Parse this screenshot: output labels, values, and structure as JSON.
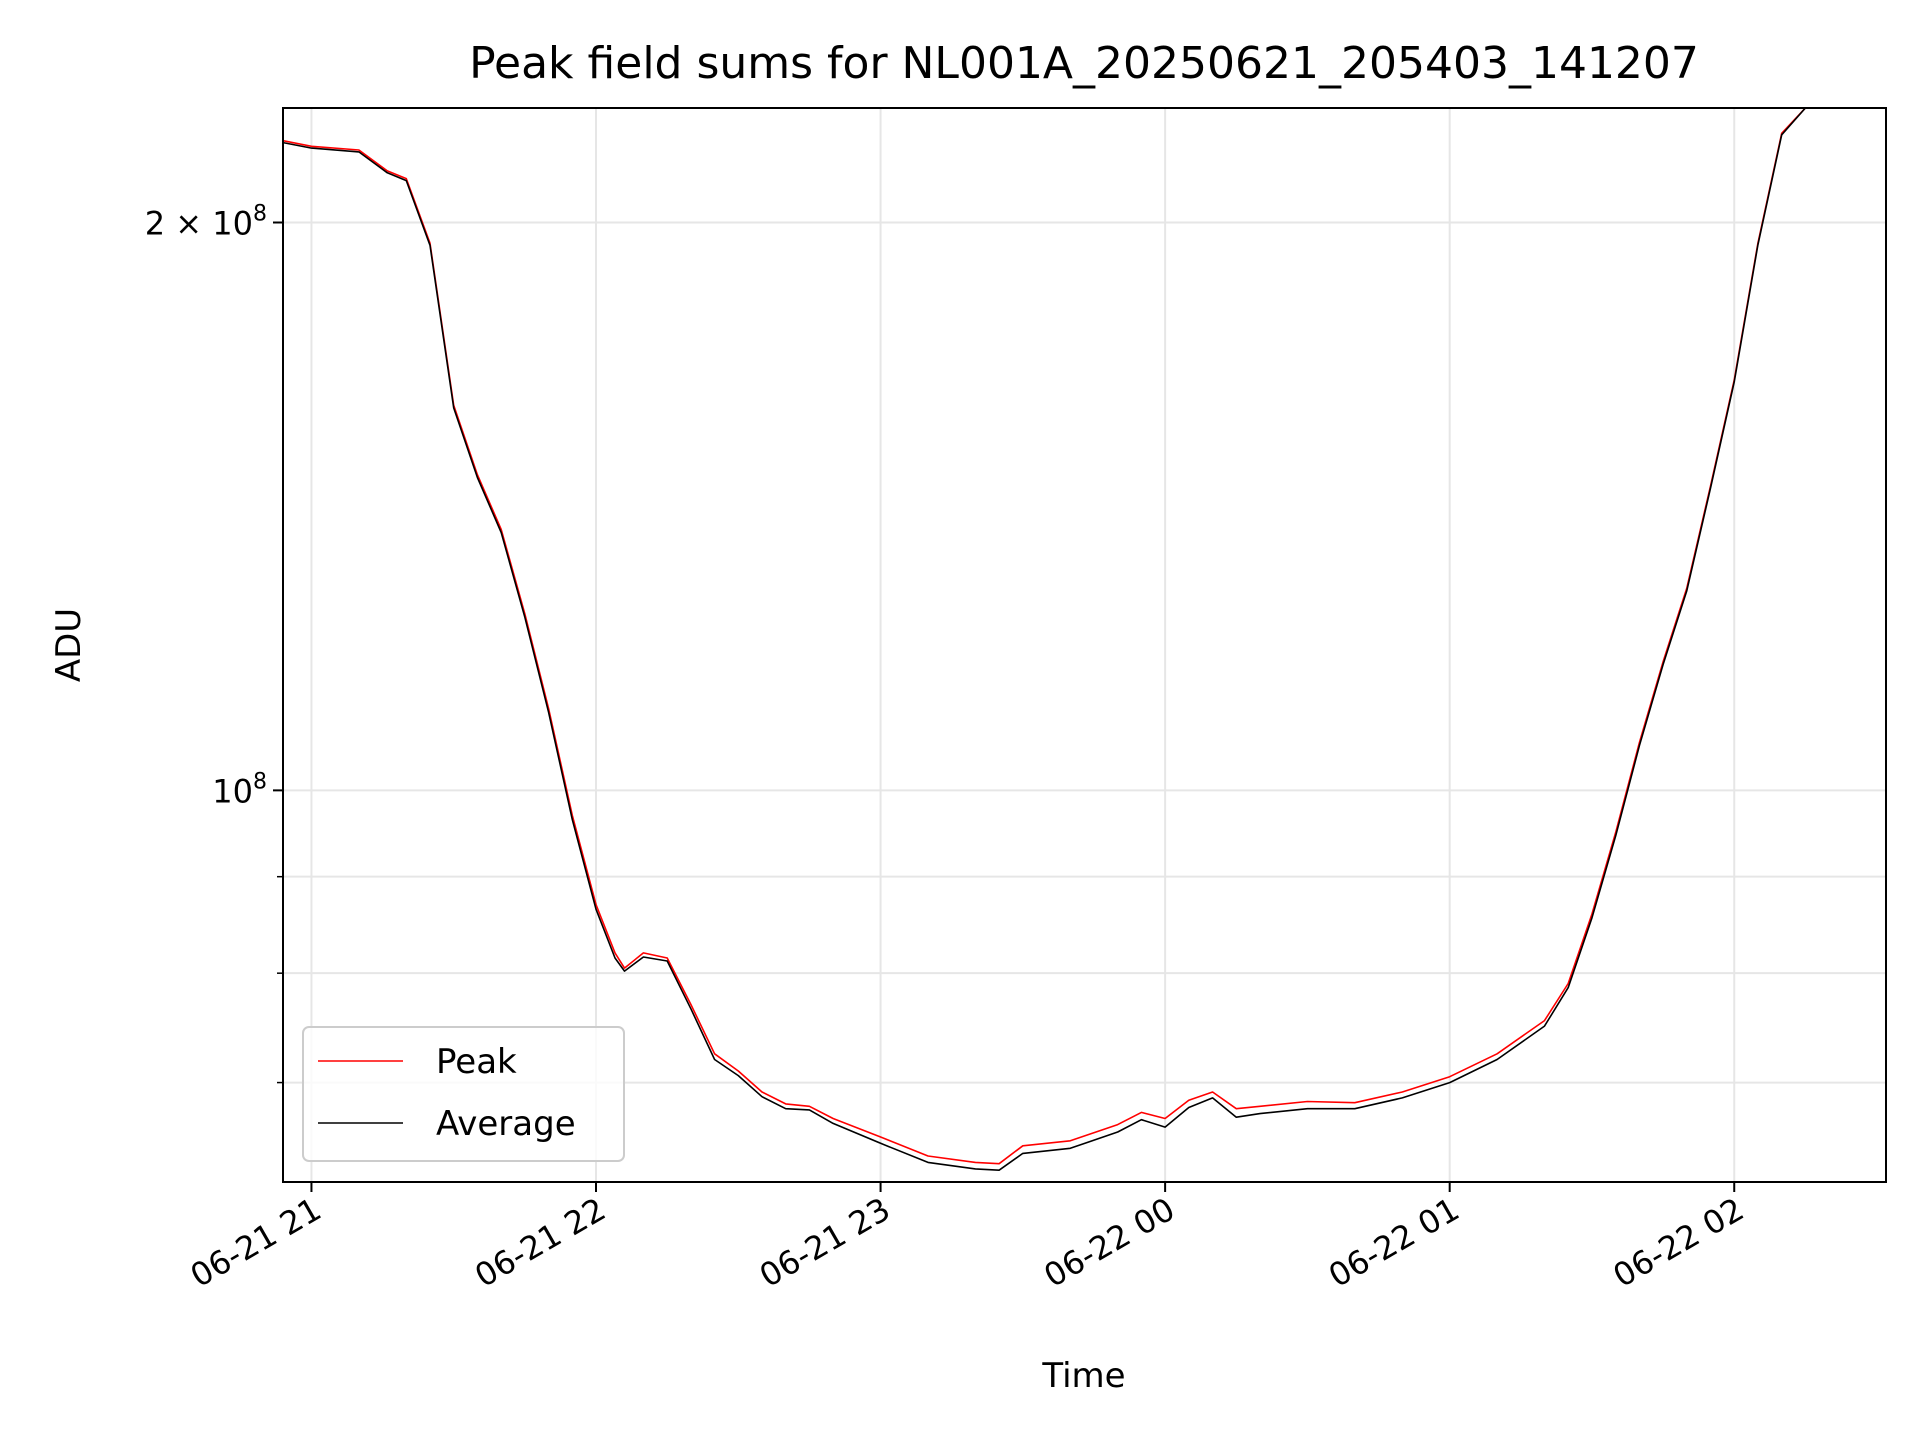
{
  "chart_data": {
    "type": "line",
    "title": "Peak field sums for NL001A_20250621_205403_141207",
    "xlabel": "Time",
    "ylabel": "ADU",
    "x_range": [
      "2025-06-21 20:54",
      "2025-06-22 02:32"
    ],
    "y_range": [
      62000000,
      230000000
    ],
    "y_scale": "log",
    "grid": true,
    "legend_placement": "lower-left",
    "x_ticks": [
      {
        "x": "2025-06-21 21:00",
        "label": "06-21 21"
      },
      {
        "x": "2025-06-21 22:00",
        "label": "06-21 22"
      },
      {
        "x": "2025-06-21 23:00",
        "label": "06-21 23"
      },
      {
        "x": "2025-06-22 00:00",
        "label": "06-22 00"
      },
      {
        "x": "2025-06-22 01:00",
        "label": "06-22 01"
      },
      {
        "x": "2025-06-22 02:00",
        "label": "06-22 02"
      }
    ],
    "y_ticks": [
      {
        "y": 100000000,
        "base": "10",
        "exp": "8"
      },
      {
        "y": 200000000,
        "base": "2 × 10",
        "exp": "8"
      }
    ],
    "y_minor_ticks": [
      70000000,
      80000000,
      90000000
    ],
    "series": [
      {
        "name": "Peak",
        "color": "#ff0000",
        "points": [
          [
            "2025-06-21 20:54",
            221000000
          ],
          [
            "2025-06-21 21:00",
            219500000
          ],
          [
            "2025-06-21 21:10",
            218500000
          ],
          [
            "2025-06-21 21:16",
            213000000
          ],
          [
            "2025-06-21 21:20",
            211000000
          ],
          [
            "2025-06-21 21:25",
            195000000
          ],
          [
            "2025-06-21 21:30",
            160000000
          ],
          [
            "2025-06-21 21:35",
            147000000
          ],
          [
            "2025-06-21 21:40",
            137500000
          ],
          [
            "2025-06-21 21:45",
            124000000
          ],
          [
            "2025-06-21 21:50",
            110500000
          ],
          [
            "2025-06-21 21:55",
            97000000
          ],
          [
            "2025-06-21 22:00",
            87000000
          ],
          [
            "2025-06-21 22:04",
            82000000
          ],
          [
            "2025-06-21 22:06",
            80500000
          ],
          [
            "2025-06-21 22:10",
            82000000
          ],
          [
            "2025-06-21 22:15",
            81500000
          ],
          [
            "2025-06-21 22:20",
            77000000
          ],
          [
            "2025-06-21 22:25",
            72500000
          ],
          [
            "2025-06-21 22:30",
            71000000
          ],
          [
            "2025-06-21 22:35",
            69200000
          ],
          [
            "2025-06-21 22:40",
            68200000
          ],
          [
            "2025-06-21 22:45",
            68000000
          ],
          [
            "2025-06-21 22:50",
            67000000
          ],
          [
            "2025-06-21 23:00",
            65500000
          ],
          [
            "2025-06-21 23:10",
            64000000
          ],
          [
            "2025-06-21 23:20",
            63500000
          ],
          [
            "2025-06-21 23:25",
            63400000
          ],
          [
            "2025-06-21 23:30",
            64800000
          ],
          [
            "2025-06-21 23:40",
            65200000
          ],
          [
            "2025-06-21 23:50",
            66500000
          ],
          [
            "2025-06-21 23:55",
            67500000
          ],
          [
            "2025-06-22 00:00",
            67000000
          ],
          [
            "2025-06-22 00:05",
            68500000
          ],
          [
            "2025-06-22 00:10",
            69200000
          ],
          [
            "2025-06-22 00:15",
            67800000
          ],
          [
            "2025-06-22 00:20",
            68000000
          ],
          [
            "2025-06-22 00:30",
            68400000
          ],
          [
            "2025-06-22 00:40",
            68300000
          ],
          [
            "2025-06-22 00:50",
            69200000
          ],
          [
            "2025-06-22 01:00",
            70500000
          ],
          [
            "2025-06-22 01:10",
            72500000
          ],
          [
            "2025-06-22 01:20",
            75500000
          ],
          [
            "2025-06-22 01:25",
            79000000
          ],
          [
            "2025-06-22 01:30",
            86000000
          ],
          [
            "2025-06-22 01:35",
            95000000
          ],
          [
            "2025-06-22 01:40",
            106000000
          ],
          [
            "2025-06-22 01:45",
            117000000
          ],
          [
            "2025-06-22 01:50",
            128000000
          ],
          [
            "2025-06-22 01:55",
            145000000
          ],
          [
            "2025-06-22 02:00",
            165000000
          ],
          [
            "2025-06-22 02:05",
            195000000
          ],
          [
            "2025-06-22 02:10",
            223000000
          ],
          [
            "2025-06-22 02:15",
            230000000
          ],
          [
            "2025-06-22 02:32",
            230000000
          ]
        ]
      },
      {
        "name": "Average",
        "color": "#000000",
        "points": [
          [
            "2025-06-21 20:54",
            220500000
          ],
          [
            "2025-06-21 21:00",
            219000000
          ],
          [
            "2025-06-21 21:10",
            218000000
          ],
          [
            "2025-06-21 21:16",
            212500000
          ],
          [
            "2025-06-21 21:20",
            210500000
          ],
          [
            "2025-06-21 21:25",
            194500000
          ],
          [
            "2025-06-21 21:30",
            159500000
          ],
          [
            "2025-06-21 21:35",
            146500000
          ],
          [
            "2025-06-21 21:40",
            137000000
          ],
          [
            "2025-06-21 21:45",
            123500000
          ],
          [
            "2025-06-21 21:50",
            110000000
          ],
          [
            "2025-06-21 21:55",
            96500000
          ],
          [
            "2025-06-21 22:00",
            86500000
          ],
          [
            "2025-06-21 22:04",
            81500000
          ],
          [
            "2025-06-21 22:06",
            80200000
          ],
          [
            "2025-06-21 22:10",
            81600000
          ],
          [
            "2025-06-21 22:15",
            81200000
          ],
          [
            "2025-06-21 22:20",
            76600000
          ],
          [
            "2025-06-21 22:25",
            72000000
          ],
          [
            "2025-06-21 22:30",
            70600000
          ],
          [
            "2025-06-21 22:35",
            68800000
          ],
          [
            "2025-06-21 22:40",
            67800000
          ],
          [
            "2025-06-21 22:45",
            67700000
          ],
          [
            "2025-06-21 22:50",
            66600000
          ],
          [
            "2025-06-21 23:00",
            65000000
          ],
          [
            "2025-06-21 23:10",
            63500000
          ],
          [
            "2025-06-21 23:20",
            63000000
          ],
          [
            "2025-06-21 23:25",
            62900000
          ],
          [
            "2025-06-21 23:30",
            64200000
          ],
          [
            "2025-06-21 23:40",
            64600000
          ],
          [
            "2025-06-21 23:50",
            65900000
          ],
          [
            "2025-06-21 23:55",
            66900000
          ],
          [
            "2025-06-22 00:00",
            66300000
          ],
          [
            "2025-06-22 00:05",
            67900000
          ],
          [
            "2025-06-22 00:10",
            68700000
          ],
          [
            "2025-06-22 00:15",
            67100000
          ],
          [
            "2025-06-22 00:20",
            67400000
          ],
          [
            "2025-06-22 00:30",
            67800000
          ],
          [
            "2025-06-22 00:40",
            67800000
          ],
          [
            "2025-06-22 00:50",
            68700000
          ],
          [
            "2025-06-22 01:00",
            70000000
          ],
          [
            "2025-06-22 01:10",
            72000000
          ],
          [
            "2025-06-22 01:20",
            75000000
          ],
          [
            "2025-06-22 01:25",
            78600000
          ],
          [
            "2025-06-22 01:30",
            85600000
          ],
          [
            "2025-06-22 01:35",
            94600000
          ],
          [
            "2025-06-22 01:40",
            105600000
          ],
          [
            "2025-06-22 01:45",
            116600000
          ],
          [
            "2025-06-22 01:50",
            127600000
          ],
          [
            "2025-06-22 01:55",
            144600000
          ],
          [
            "2025-06-22 02:00",
            164600000
          ],
          [
            "2025-06-22 02:05",
            194600000
          ],
          [
            "2025-06-22 02:10",
            222600000
          ],
          [
            "2025-06-22 02:15",
            230000000
          ],
          [
            "2025-06-22 02:32",
            230000000
          ]
        ]
      }
    ]
  }
}
